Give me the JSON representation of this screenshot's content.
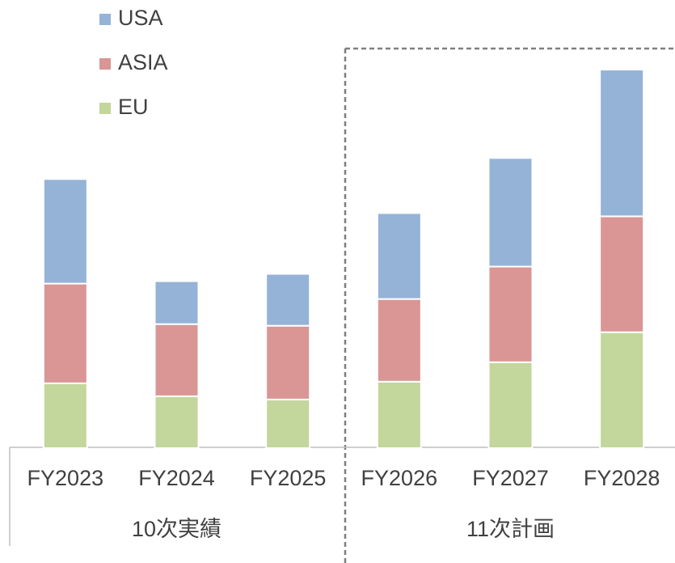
{
  "chart_data": {
    "type": "stacked_bar",
    "categories": [
      "FY2023",
      "FY2024",
      "FY2025",
      "FY2026",
      "FY2027",
      "FY2028"
    ],
    "groups": [
      {
        "name": "10次実績",
        "span": 3
      },
      {
        "name": "11次計画",
        "span": 3
      }
    ],
    "series": [
      {
        "name": "EU",
        "color": "#c3d69b",
        "values": [
          80,
          64,
          60,
          82,
          106,
          143
        ]
      },
      {
        "name": "ASIA",
        "color": "#d99694",
        "values": [
          123,
          89,
          91,
          102,
          118,
          143
        ]
      },
      {
        "name": "USA",
        "color": "#95b3d7",
        "values": [
          129,
          53,
          64,
          106,
          134,
          181
        ]
      }
    ],
    "ylim": [
      0,
      500
    ],
    "legend": "top-left"
  }
}
